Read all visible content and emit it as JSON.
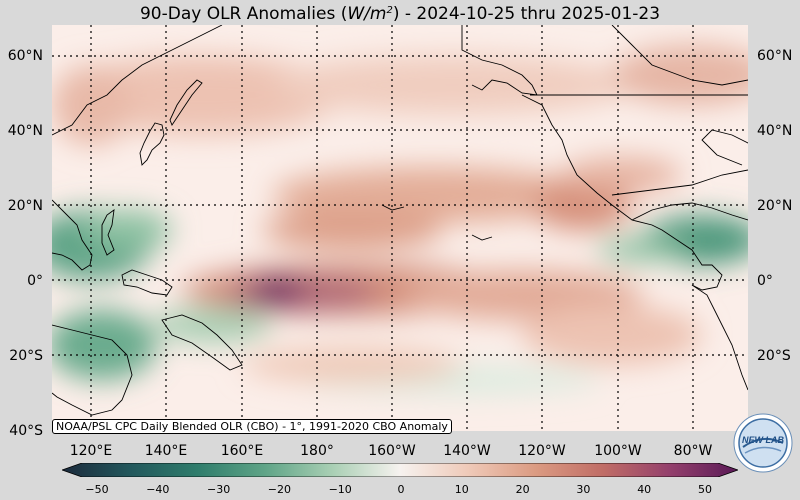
{
  "title": {
    "prefix": "90-Day OLR Anomalies (",
    "unit": "W/m",
    "unit_sup": "2",
    "suffix": ") - 2024-10-25 thru 2025-01-23"
  },
  "lat_labels": [
    "60°N",
    "40°N",
    "20°N",
    "0°",
    "20°S",
    "40°S"
  ],
  "lon_labels": [
    "120°E",
    "140°E",
    "160°E",
    "180°",
    "160°W",
    "140°W",
    "120°W",
    "100°W",
    "80°W"
  ],
  "credit": "NOAA/PSL CPC Daily Blended OLR (CBO) - 1°, 1991-2020 CBO Anomaly",
  "colorbar": {
    "ticks": [
      "−50",
      "−40",
      "−30",
      "−20",
      "−10",
      "0",
      "10",
      "20",
      "30",
      "40",
      "50"
    ],
    "colors": [
      "#1c2a3c",
      "#22575c",
      "#2f7d6c",
      "#5fa487",
      "#a9cfb4",
      "#f6f2ef",
      "#efcab9",
      "#db9b82",
      "#c06d66",
      "#933f6c",
      "#5a1a57"
    ]
  },
  "logo": {
    "text": "NEW LAB"
  }
}
